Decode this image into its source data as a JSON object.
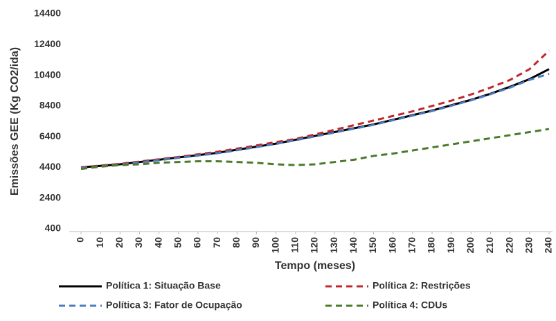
{
  "chart_data": {
    "type": "line",
    "ylabel": "Emissões GEE (Kg CO2/ida)",
    "xlabel": "Tempo (meses)",
    "x": [
      0,
      10,
      20,
      30,
      40,
      50,
      60,
      70,
      80,
      90,
      100,
      110,
      120,
      130,
      140,
      150,
      160,
      170,
      180,
      190,
      200,
      210,
      220,
      230,
      240
    ],
    "series": [
      {
        "name": "Política 1: Situação Base",
        "color": "#000000",
        "style": "solid",
        "values": [
          4400,
          4500,
          4600,
          4750,
          4900,
          5050,
          5200,
          5350,
          5550,
          5750,
          5950,
          6200,
          6450,
          6700,
          6950,
          7200,
          7500,
          7800,
          8100,
          8450,
          8800,
          9200,
          9650,
          10150,
          10800
        ]
      },
      {
        "name": "Política 2: Restrições",
        "color": "#c0282d",
        "style": "dashed",
        "values": [
          4400,
          4520,
          4630,
          4780,
          4930,
          5080,
          5250,
          5420,
          5620,
          5830,
          6050,
          6250,
          6550,
          6850,
          7150,
          7450,
          7750,
          8050,
          8400,
          8750,
          9150,
          9600,
          10100,
          10800,
          12000
        ]
      },
      {
        "name": "Política 3: Fator de Ocupação",
        "color": "#4a7cc0",
        "style": "dashed",
        "values": [
          4350,
          4470,
          4580,
          4720,
          4870,
          5020,
          5170,
          5320,
          5520,
          5720,
          5930,
          6170,
          6420,
          6670,
          6920,
          7170,
          7470,
          7770,
          8070,
          8420,
          8770,
          9170,
          9600,
          10100,
          10500
        ]
      },
      {
        "name": "Política 4: CDUs",
        "color": "#4a7a2a",
        "style": "dashed",
        "values": [
          4300,
          4450,
          4550,
          4600,
          4700,
          4750,
          4800,
          4800,
          4750,
          4700,
          4600,
          4550,
          4600,
          4750,
          4900,
          5150,
          5300,
          5500,
          5700,
          5900,
          6100,
          6300,
          6500,
          6700,
          6900
        ]
      }
    ],
    "xlim": [
      0,
      240
    ],
    "xticks": [
      0,
      10,
      20,
      30,
      40,
      50,
      60,
      70,
      80,
      90,
      100,
      110,
      120,
      130,
      140,
      150,
      160,
      170,
      180,
      190,
      200,
      210,
      220,
      230,
      240
    ],
    "ylim": [
      400,
      14400
    ],
    "yticks": [
      400,
      2400,
      4400,
      6400,
      8400,
      10400,
      12400,
      14400
    ],
    "grid": false,
    "legend": "bottom"
  }
}
